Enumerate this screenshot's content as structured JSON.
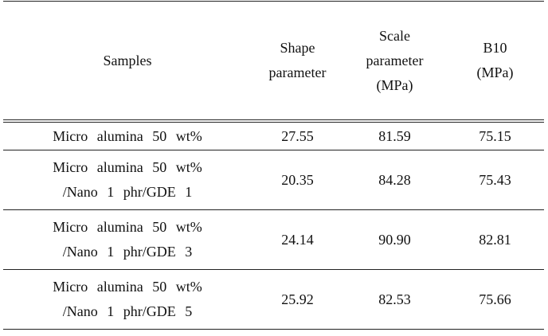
{
  "table": {
    "headers": {
      "samples": "Samples",
      "shape_1": "Shape",
      "shape_2": "parameter",
      "scale_1": "Scale",
      "scale_2": "parameter",
      "scale_3": "(MPa)",
      "b10_1": "B10",
      "b10_2": "(MPa)"
    },
    "rows": [
      {
        "sample_line1": "Micro alumina 50 wt%",
        "sample_line2": "",
        "shape": "27.55",
        "scale": "81.59",
        "b10": "75.15"
      },
      {
        "sample_line1": "Micro alumina 50 wt%",
        "sample_line2": "/Nano 1 phr/GDE 1",
        "shape": "20.35",
        "scale": "84.28",
        "b10": "75.43"
      },
      {
        "sample_line1": "Micro alumina 50 wt%",
        "sample_line2": "/Nano 1 phr/GDE 3",
        "shape": "24.14",
        "scale": "90.90",
        "b10": "82.81"
      },
      {
        "sample_line1": "Micro alumina 50 wt%",
        "sample_line2": "/Nano 1 phr/GDE 5",
        "shape": "25.92",
        "scale": "82.53",
        "b10": "75.66"
      }
    ]
  }
}
